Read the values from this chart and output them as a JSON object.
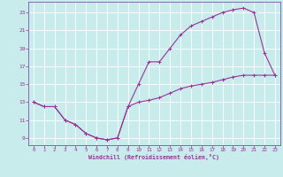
{
  "xlabel": "Windchill (Refroidissement éolien,°C)",
  "bg_color": "#c8ecec",
  "grid_color": "#aadddd",
  "line_color": "#993399",
  "spine_color": "#7755aa",
  "xlim": [
    -0.5,
    23.5
  ],
  "ylim": [
    8.2,
    24.2
  ],
  "xticks": [
    0,
    1,
    2,
    3,
    4,
    5,
    6,
    7,
    8,
    9,
    10,
    11,
    12,
    13,
    14,
    15,
    16,
    17,
    18,
    19,
    20,
    21,
    22,
    23
  ],
  "yticks": [
    9,
    11,
    13,
    15,
    17,
    19,
    21,
    23
  ],
  "line1_x": [
    0,
    1,
    2,
    3,
    4,
    5,
    6,
    7,
    8,
    9,
    10,
    11,
    12,
    13,
    14,
    15,
    16,
    17,
    18,
    19,
    20,
    21,
    22,
    23
  ],
  "line1_y": [
    13,
    12.5,
    12.5,
    11,
    10.5,
    9.5,
    9.0,
    8.8,
    9.0,
    12.5,
    15.0,
    17.5,
    17.5,
    19.0,
    20.5,
    21.5,
    22.0,
    22.5,
    23.0,
    23.3,
    23.5,
    23.0,
    18.5,
    16.0
  ],
  "line2_x": [
    0,
    1,
    2,
    3,
    4,
    5,
    6,
    7,
    8,
    9,
    10,
    11,
    12,
    13,
    14,
    15,
    16,
    17,
    18,
    19,
    20,
    21,
    22,
    23
  ],
  "line2_y": [
    13,
    12.5,
    12.5,
    11,
    10.5,
    9.5,
    9.0,
    8.8,
    9.0,
    12.5,
    13.0,
    13.2,
    13.5,
    14.0,
    14.5,
    14.8,
    15.0,
    15.2,
    15.5,
    15.8,
    16.0,
    16.0,
    16.0,
    16.0
  ],
  "marker": "+"
}
